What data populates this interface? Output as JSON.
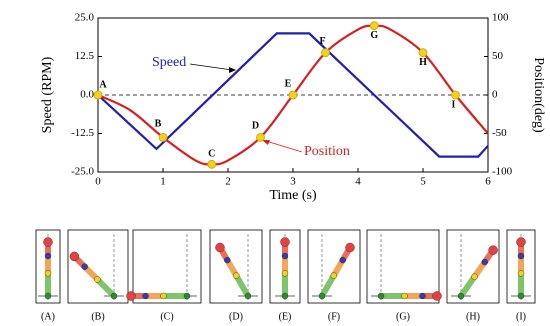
{
  "chart_data": {
    "type": "line",
    "xlabel": "Time (s)",
    "ylabel": "Speed (RPM)",
    "y2label": "Position(deg)",
    "xlim": [
      0,
      6
    ],
    "xticks": [
      0,
      1,
      2,
      3,
      4,
      5,
      6
    ],
    "ylim": [
      -25,
      25
    ],
    "yticks": [
      {
        "value": -25,
        "label": "-25.0"
      },
      {
        "value": -12.5,
        "label": "-12.5"
      },
      {
        "value": 0,
        "label": "0.0"
      },
      {
        "value": 12.5,
        "label": "12.5"
      },
      {
        "value": 25,
        "label": "25.0"
      }
    ],
    "y2lim": [
      -100,
      100
    ],
    "y2ticks": [
      -100,
      -50,
      0,
      50,
      100
    ],
    "series": [
      {
        "name": "Speed",
        "color": "#1f1fb4",
        "x": [
          0,
          0.9,
          2.75,
          3.25,
          5.25,
          5.85,
          6
        ],
        "values": [
          0,
          -17.5,
          20,
          20,
          -20,
          -20,
          -16.5
        ]
      },
      {
        "name": "Position",
        "color": "#d42020",
        "axis": "y2",
        "x": [
          0,
          0.5,
          1,
          1.5,
          1.75,
          2,
          2.5,
          3,
          3.5,
          4,
          4.25,
          4.5,
          5,
          5.5,
          6
        ],
        "values": [
          0,
          -20,
          -55,
          -85,
          -90,
          -85,
          -55,
          0,
          55,
          85,
          90,
          85,
          55,
          0,
          -50
        ]
      }
    ],
    "markers": {
      "color": "#f5d21a",
      "labels": [
        "A",
        "B",
        "C",
        "D",
        "E",
        "F",
        "G",
        "H",
        "I"
      ],
      "x": [
        0,
        1,
        1.75,
        2.5,
        3,
        3.5,
        4.25,
        5,
        5.5
      ],
      "values": [
        0,
        -55,
        -90,
        -55,
        0,
        55,
        90,
        55,
        0
      ]
    },
    "panels": [
      "(A)",
      "(B)",
      "(C)",
      "(D)",
      "(E)",
      "(F)",
      "(G)",
      "(H)",
      "(I)"
    ]
  }
}
